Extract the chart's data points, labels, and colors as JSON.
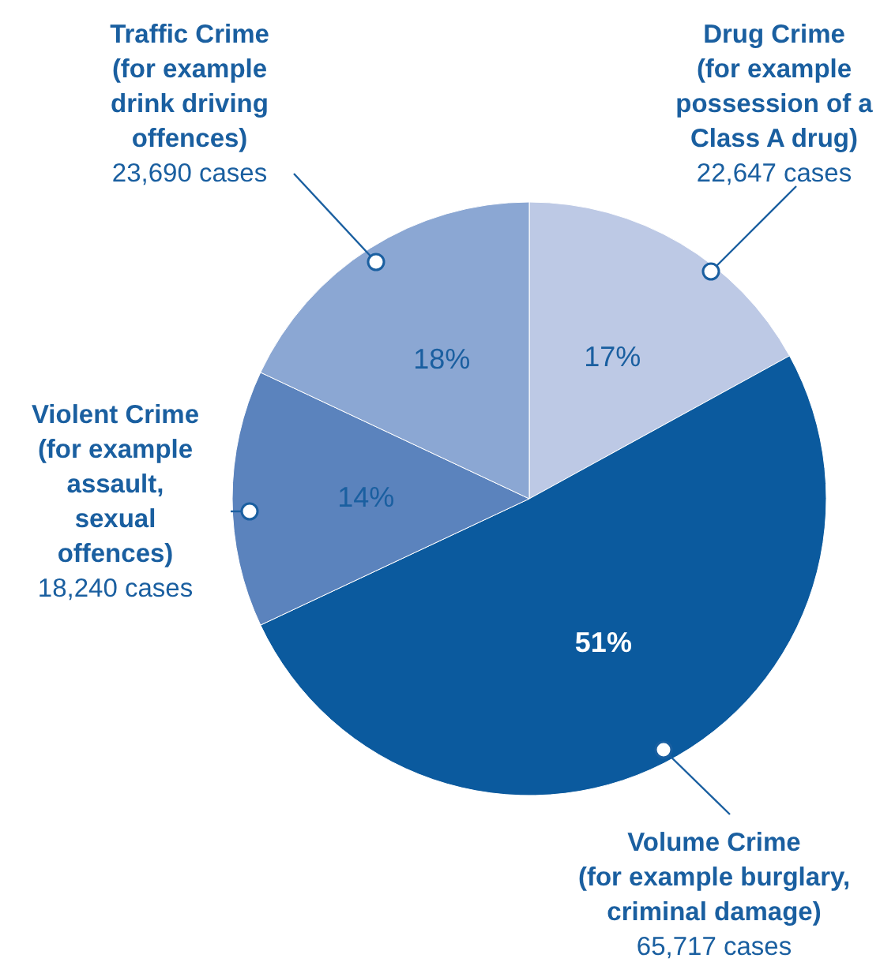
{
  "chart_data": {
    "type": "pie",
    "categories": [
      "Drug Crime\n(for example\npossession of a\nClass A drug)\n22,647 cases",
      "Volume Crime\n(for example burglary,\ncriminal damage)\n65,717 cases",
      "Violent Crime\n(for example\nassault,\nsexual\noffences)\n18,240 cases",
      "Traffic Crime\n(for example\ndrink driving\noffences)\n23,690 cases"
    ],
    "values": [
      17,
      51,
      14,
      18
    ],
    "value_labels": [
      "17%",
      "51%",
      "14%",
      "18%"
    ],
    "colors": [
      "#bdc9e5",
      "#0b5a9e",
      "#5b83bd",
      "#8ba7d3"
    ]
  }
}
